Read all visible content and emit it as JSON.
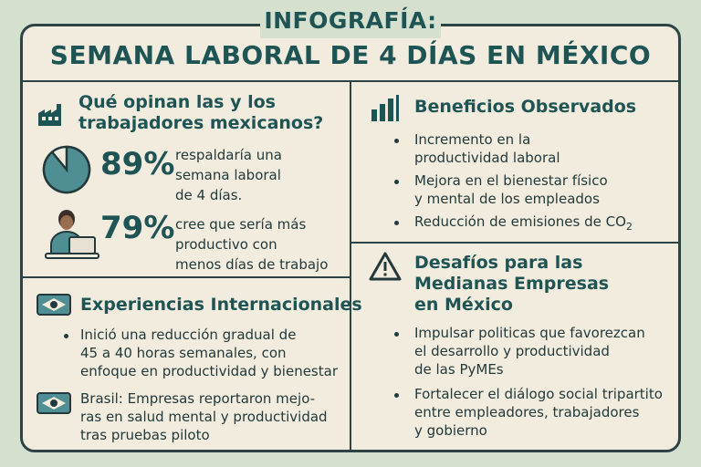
{
  "title": {
    "line1": "INFOGRAFÍA:",
    "line2": "SEMANA LABORAL DE 4 DÍAS EN MÉXICO"
  },
  "opinion": {
    "heading_line1": "Qué opinan las y los",
    "heading_line2": "trabajadores mexicanos?",
    "stat1": {
      "value": "89%",
      "pie_fraction": 0.89,
      "l1": "respaldaría una",
      "l2": "semana laboral",
      "l3": "de 4 días."
    },
    "stat2": {
      "value": "79%",
      "l1": "cree que sería más",
      "l2": "productivo con",
      "l3": "menos días de trabajo"
    }
  },
  "benefits": {
    "heading": "Beneficios Observados",
    "items": [
      {
        "l1": "Incremento en la",
        "l2": "productividad laboral"
      },
      {
        "l1": "Mejora en el bienestar físico",
        "l2": "y mental de los empleados"
      },
      {
        "l1": "Reducción de emisiones de CO",
        "sub": "2"
      }
    ]
  },
  "international": {
    "heading": "Experiencias Internacionales",
    "item1": {
      "l1": "Inició una reducción gradual de",
      "l2": "45 a 40 horas semanales, con",
      "l3": "enfoque en productividad y bienestar"
    },
    "item2": {
      "l1": "Brasil: Empresas reportaron mejo-",
      "l2": "ras en salud mental y productividad",
      "l3": "tras pruebas piloto"
    }
  },
  "challenges": {
    "heading_line1": "Desafíos para las",
    "heading_line2": "Medianas Empresas",
    "heading_line3": "en México",
    "items": [
      {
        "l1": "Impulsar politicas que favorezcan",
        "l2": "el desarrollo y productividad",
        "l3": "de las PyMEs"
      },
      {
        "l1": "Fortalecer el diálogo social tripartito",
        "l2": "entre empleadores, trabajadores",
        "l3": "y gobierno"
      }
    ]
  },
  "colors": {
    "accent": "#1f5455",
    "teal": "#4f8f94",
    "paper": "#f1ecde",
    "outline": "#2d4346",
    "background": "#d6e0cf"
  },
  "icons": [
    "factory-icon",
    "pie-chart-icon",
    "worker-laptop-icon",
    "bar-chart-icon",
    "warning-icon",
    "flag-icon",
    "brazil-flag-icon"
  ]
}
